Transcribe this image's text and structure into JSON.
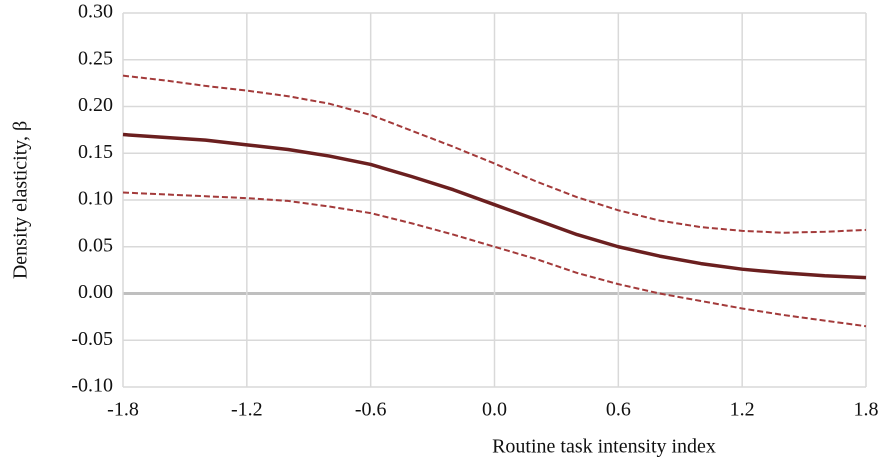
{
  "chart_data": {
    "type": "line",
    "x_label": "Routine task intensity index",
    "y_label": "Density elasticity, β",
    "x": [
      -1.8,
      -1.6,
      -1.4,
      -1.2,
      -1.0,
      -0.8,
      -0.6,
      -0.4,
      -0.2,
      0.0,
      0.2,
      0.4,
      0.6,
      0.8,
      1.0,
      1.2,
      1.4,
      1.6,
      1.8
    ],
    "series": [
      {
        "color": "#6b1f1f",
        "dashed": false,
        "values": [
          0.17,
          0.167,
          0.164,
          0.159,
          0.154,
          0.147,
          0.138,
          0.125,
          0.111,
          0.095,
          0.079,
          0.063,
          0.05,
          0.04,
          0.032,
          0.026,
          0.022,
          0.019,
          0.017
        ]
      },
      {
        "color": "#a33a3a",
        "dashed": true,
        "values": [
          0.233,
          0.228,
          0.222,
          0.217,
          0.211,
          0.203,
          0.191,
          0.174,
          0.157,
          0.139,
          0.12,
          0.103,
          0.089,
          0.078,
          0.071,
          0.067,
          0.065,
          0.066,
          0.068
        ]
      },
      {
        "color": "#a33a3a",
        "dashed": true,
        "values": [
          0.108,
          0.106,
          0.104,
          0.102,
          0.099,
          0.093,
          0.086,
          0.075,
          0.063,
          0.05,
          0.037,
          0.022,
          0.01,
          0.0,
          -0.008,
          -0.016,
          -0.023,
          -0.029,
          -0.035
        ]
      }
    ],
    "xlim": [
      -1.8,
      1.8
    ],
    "xticks": [
      -1.8,
      -1.2,
      -0.6,
      {
        "value": 0,
        "label": "0.0"
      },
      0.6,
      1.2,
      1.8
    ],
    "ylim": [
      -0.1,
      0.3
    ],
    "yticks": [
      {
        "value": -0.1,
        "label": "-0.10"
      },
      {
        "value": -0.05,
        "label": "-0.05"
      },
      {
        "value": 0,
        "label": "0.00"
      },
      {
        "value": 0.05,
        "label": "0.05"
      },
      {
        "value": 0.1,
        "label": "0.10"
      },
      {
        "value": 0.15,
        "label": "0.15"
      },
      {
        "value": 0.2,
        "label": "0.20"
      },
      {
        "value": 0.25,
        "label": "0.25"
      },
      {
        "value": 0.3,
        "label": "0.30"
      }
    ],
    "grid": true
  }
}
